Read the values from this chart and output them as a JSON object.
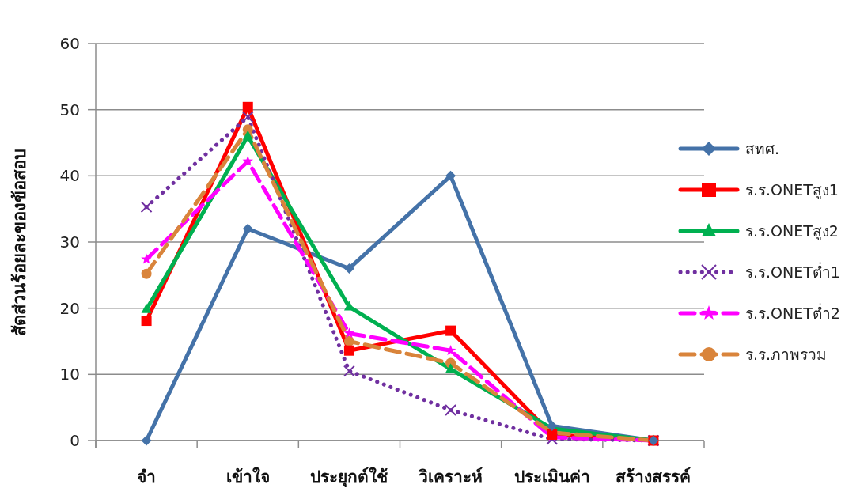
{
  "chart_data": {
    "type": "line",
    "ylabel": "สัดส่วนร้อยละของข้อสอบ",
    "categories": [
      "จำ",
      "เข้าใจ",
      "ประยุกต์ใช้",
      "วิเคราะห์",
      "ประเมินค่า",
      "สร้างสรรค์"
    ],
    "ylim": [
      0,
      60
    ],
    "yticks": [
      0,
      10,
      20,
      30,
      40,
      50,
      60
    ],
    "grid": "y",
    "legend": "right",
    "series": [
      {
        "name": "สทศ.",
        "color": "#4472a8",
        "marker": "diamond",
        "line_style": "solid",
        "values": [
          0,
          32,
          26,
          40,
          2.2,
          0
        ]
      },
      {
        "name": "ร.ร.ONETสูง1",
        "color": "#ff0000",
        "marker": "square",
        "line_style": "solid",
        "values": [
          18.1,
          50.4,
          13.6,
          16.6,
          0.9,
          0
        ]
      },
      {
        "name": "ร.ร.ONETสูง2",
        "color": "#00b050",
        "marker": "triangle",
        "line_style": "solid",
        "values": [
          19.8,
          46,
          20.2,
          10.8,
          1.8,
          0
        ]
      },
      {
        "name": "ร.ร.ONETต่ำ1",
        "color": "#7030a0",
        "marker": "cross",
        "line_style": "dotted",
        "values": [
          35.3,
          48.9,
          10.5,
          4.6,
          0.2,
          0
        ]
      },
      {
        "name": "ร.ร.ONETต่ำ2",
        "color": "#ff00ff",
        "marker": "star",
        "line_style": "dashed",
        "values": [
          27.4,
          42.2,
          16.2,
          13.6,
          0.5,
          0
        ]
      },
      {
        "name": "ร.ร.ภาพรวม",
        "color": "#d9843b",
        "marker": "circle",
        "line_style": "dashed",
        "values": [
          25.2,
          47,
          15,
          11.7,
          1.2,
          0
        ]
      }
    ]
  }
}
